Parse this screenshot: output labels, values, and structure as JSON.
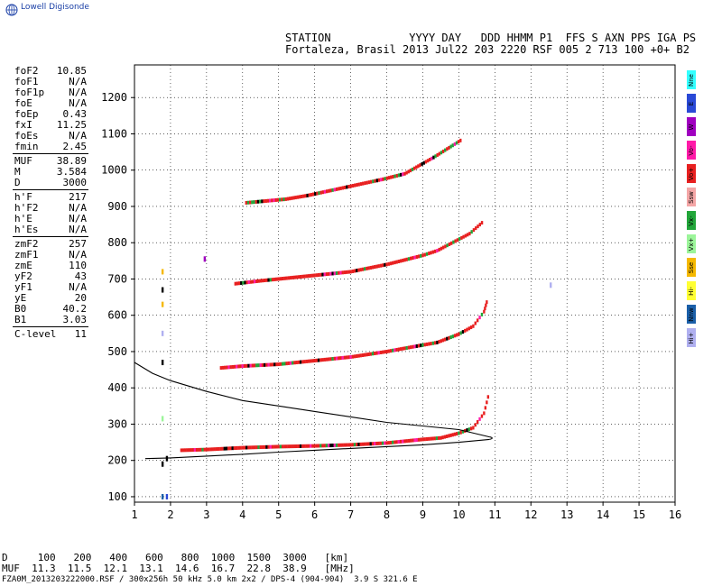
{
  "brand": "Lowell Digisonde",
  "header": {
    "line1": "STATION            YYYY DAY   DDD HHMM P1  FFS S AXN PPS IGA PS",
    "line2": "Fortaleza, Brasil 2013 Jul22 203 2220 RSF 005 2 713 100 +0+ B2"
  },
  "params": [
    {
      "k": "foF2",
      "v": "10.85"
    },
    {
      "k": "foF1",
      "v": "N/A"
    },
    {
      "k": "foF1p",
      "v": "N/A"
    },
    {
      "k": "foE",
      "v": "N/A"
    },
    {
      "k": "foEp",
      "v": "0.43"
    },
    {
      "k": "fxI",
      "v": "11.25"
    },
    {
      "k": "foEs",
      "v": "N/A"
    },
    {
      "k": "fmin",
      "v": "2.45"
    },
    {
      "sep": true
    },
    {
      "k": "MUF",
      "v": "38.89"
    },
    {
      "k": "M",
      "v": "3.584"
    },
    {
      "k": "D",
      "v": "3000"
    },
    {
      "sep": true
    },
    {
      "k": "h'F",
      "v": "217"
    },
    {
      "k": "h'F2",
      "v": "N/A"
    },
    {
      "k": "h'E",
      "v": "N/A"
    },
    {
      "k": "h'Es",
      "v": "N/A"
    },
    {
      "sep": true
    },
    {
      "k": "zmF2",
      "v": "257"
    },
    {
      "k": "zmF1",
      "v": "N/A"
    },
    {
      "k": "zmE",
      "v": "110"
    },
    {
      "k": "yF2",
      "v": "43"
    },
    {
      "k": "yF1",
      "v": "N/A"
    },
    {
      "k": "yE",
      "v": "20"
    },
    {
      "k": "B0",
      "v": "40.2"
    },
    {
      "k": "B1",
      "v": "3.03"
    },
    {
      "sep": true
    },
    {
      "k": "C-level",
      "v": "11"
    }
  ],
  "legend": [
    {
      "label": "Nne",
      "color": "#33ffff"
    },
    {
      "label": "E",
      "color": "#2a49d6"
    },
    {
      "label": "W",
      "color": "#a000c0"
    },
    {
      "label": "Vo-",
      "color": "#ff1aa8"
    },
    {
      "label": "Vo+",
      "color": "#e82020"
    },
    {
      "label": "Ssw",
      "color": "#f4a6a6"
    },
    {
      "label": "Vx-",
      "color": "#22a63a"
    },
    {
      "label": "Vx+",
      "color": "#9cf59a"
    },
    {
      "label": "Sse",
      "color": "#f5b800"
    },
    {
      "label": "Hi-",
      "color": "#ffff33"
    },
    {
      "label": "Nnw",
      "color": "#1a5fa8"
    },
    {
      "label": "Hi+",
      "color": "#b0b0f0"
    }
  ],
  "table": {
    "row1": "D     100   200   400   600   800  1000  1500  3000   [km]",
    "row2": "MUF  11.3  11.5  12.1  13.1  14.6  16.7  22.8  38.9   [MHz]"
  },
  "footer": "FZA0M_2013203222000.RSF / 300x256h 50 kHz 5.0 km 2x2 / DPS-4 (904-904)  3.9 S 321.6 E",
  "chart_data": {
    "type": "scatter",
    "xlim": [
      1,
      16
    ],
    "ylim": [
      85,
      1290
    ],
    "xticks": [
      1,
      2,
      3,
      4,
      5,
      6,
      7,
      8,
      9,
      10,
      11,
      12,
      13,
      14,
      15,
      16
    ],
    "yticks": [
      100,
      200,
      300,
      400,
      500,
      600,
      700,
      800,
      900,
      1000,
      1100,
      1200
    ],
    "grid": true,
    "traces": [
      {
        "name": "F2 trace",
        "color": "#e82020",
        "points": [
          [
            2.3,
            228
          ],
          [
            3,
            230
          ],
          [
            4,
            235
          ],
          [
            5,
            238
          ],
          [
            6,
            240
          ],
          [
            7,
            243
          ],
          [
            8,
            248
          ],
          [
            9,
            258
          ],
          [
            9.5,
            262
          ],
          [
            10,
            275
          ],
          [
            10.4,
            290
          ],
          [
            10.7,
            330
          ],
          [
            10.85,
            390
          ]
        ]
      },
      {
        "name": "2F trace",
        "color": "#e82020",
        "points": [
          [
            3.4,
            455
          ],
          [
            4,
            460
          ],
          [
            5,
            465
          ],
          [
            6,
            475
          ],
          [
            7,
            485
          ],
          [
            8,
            500
          ],
          [
            9,
            518
          ],
          [
            9.4,
            525
          ],
          [
            10,
            548
          ],
          [
            10.4,
            570
          ],
          [
            10.7,
            610
          ],
          [
            10.8,
            645
          ]
        ]
      },
      {
        "name": "3F trace",
        "color": "#e82020",
        "points": [
          [
            3.8,
            687
          ],
          [
            4.5,
            695
          ],
          [
            5,
            700
          ],
          [
            6,
            710
          ],
          [
            7,
            720
          ],
          [
            8,
            740
          ],
          [
            9,
            765
          ],
          [
            9.4,
            778
          ],
          [
            10.3,
            825
          ],
          [
            10.7,
            860
          ]
        ]
      },
      {
        "name": "4F trace",
        "color": "#e82020",
        "points": [
          [
            4.1,
            910
          ],
          [
            5.2,
            920
          ],
          [
            5.8,
            930
          ],
          [
            6.5,
            945
          ],
          [
            7.9,
            975
          ],
          [
            8.5,
            990
          ],
          [
            9.3,
            1035
          ],
          [
            10.1,
            1085
          ]
        ]
      }
    ],
    "profile": {
      "upper": [
        [
          1,
          470
        ],
        [
          1.5,
          440
        ],
        [
          2,
          420
        ],
        [
          3,
          390
        ],
        [
          4,
          365
        ],
        [
          5,
          350
        ],
        [
          6,
          335
        ],
        [
          7,
          320
        ],
        [
          8,
          305
        ],
        [
          9,
          295
        ],
        [
          10,
          285
        ],
        [
          10.85,
          265
        ]
      ],
      "lower": [
        [
          1.3,
          205
        ],
        [
          2,
          207
        ],
        [
          3,
          212
        ],
        [
          4,
          217
        ],
        [
          5,
          223
        ],
        [
          6,
          228
        ],
        [
          7,
          233
        ],
        [
          8,
          238
        ],
        [
          9,
          243
        ],
        [
          10,
          250
        ],
        [
          10.85,
          258
        ]
      ]
    },
    "markers": [
      {
        "x": 1.78,
        "y": 100,
        "color": "#1a5fa8"
      },
      {
        "x": 1.9,
        "y": 100,
        "color": "#2a49d6"
      },
      {
        "x": 1.78,
        "y": 190,
        "color": "#000000"
      },
      {
        "x": 1.9,
        "y": 205,
        "color": "#000000"
      },
      {
        "x": 1.78,
        "y": 315,
        "color": "#9cf59a"
      },
      {
        "x": 1.78,
        "y": 470,
        "color": "#000000"
      },
      {
        "x": 1.78,
        "y": 550,
        "color": "#b0b0f0"
      },
      {
        "x": 1.78,
        "y": 630,
        "color": "#f5b800"
      },
      {
        "x": 1.78,
        "y": 670,
        "color": "#000000"
      },
      {
        "x": 1.78,
        "y": 720,
        "color": "#f5b800"
      },
      {
        "x": 2.95,
        "y": 755,
        "color": "#a000c0"
      },
      {
        "x": 12.55,
        "y": 683,
        "color": "#b0b0f0"
      }
    ]
  }
}
